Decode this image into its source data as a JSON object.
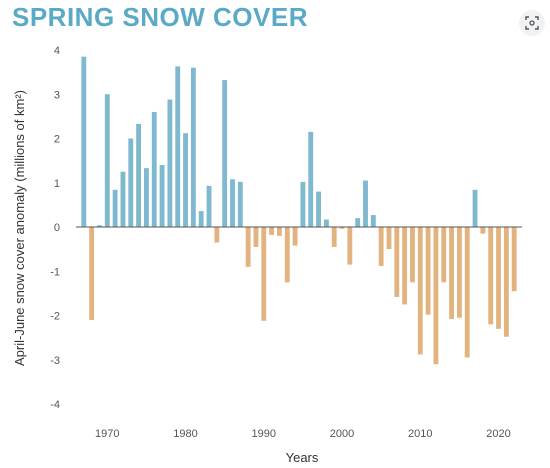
{
  "title": "SPRING SNOW COVER",
  "icons": {
    "scan": "scan-icon"
  },
  "chart_data": {
    "type": "bar",
    "title": "SPRING SNOW COVER",
    "xlabel": "Years",
    "ylabel": "April-June snow cover anomaly (millions of km²)",
    "xlim": [
      1966,
      2023
    ],
    "ylim": [
      -4,
      4
    ],
    "x_ticks": [
      1970,
      1980,
      1990,
      2000,
      2010,
      2020
    ],
    "y_ticks": [
      4,
      3,
      2,
      1,
      0,
      -1,
      -2,
      -3,
      -4
    ],
    "grid": false,
    "colors": {
      "positive": "#7eb9cf",
      "negative": "#e2b37e"
    },
    "x": [
      1967,
      1968,
      1969,
      1970,
      1971,
      1972,
      1973,
      1974,
      1975,
      1976,
      1977,
      1978,
      1979,
      1980,
      1981,
      1982,
      1983,
      1984,
      1985,
      1986,
      1987,
      1988,
      1989,
      1990,
      1991,
      1992,
      1993,
      1994,
      1995,
      1996,
      1997,
      1998,
      1999,
      2000,
      2001,
      2002,
      2003,
      2004,
      2005,
      2006,
      2007,
      2008,
      2009,
      2010,
      2011,
      2012,
      2013,
      2014,
      2015,
      2016,
      2017,
      2018,
      2019,
      2020,
      2021,
      2022
    ],
    "values": [
      3.85,
      -2.1,
      0.04,
      3.0,
      0.84,
      1.25,
      2.0,
      2.33,
      1.33,
      2.6,
      1.4,
      2.88,
      3.63,
      2.12,
      3.6,
      0.36,
      0.93,
      -0.35,
      3.32,
      1.08,
      1.02,
      -0.9,
      -0.45,
      -2.12,
      -0.18,
      -0.2,
      -1.25,
      -0.42,
      1.02,
      2.15,
      0.8,
      0.17,
      -0.45,
      -0.04,
      -0.85,
      0.2,
      1.05,
      0.27,
      -0.88,
      -0.5,
      -1.58,
      -1.75,
      -1.25,
      -2.88,
      -1.98,
      -3.1,
      -1.25,
      -2.08,
      -2.05,
      -2.95,
      0.84,
      -0.15,
      -2.2,
      -2.3,
      -2.48,
      -1.45
    ]
  }
}
